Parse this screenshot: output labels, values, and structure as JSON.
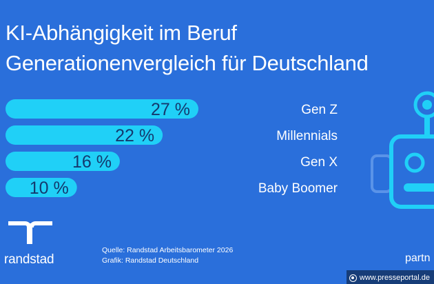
{
  "header": {
    "title_line1": "KI-Abhängigkeit im Beruf",
    "title_line2": "Generationenvergleich für Deutschland"
  },
  "chart_data": {
    "type": "bar",
    "orientation": "horizontal",
    "categories": [
      "Gen Z",
      "Millennials",
      "Gen X",
      "Baby Boomer"
    ],
    "values": [
      27,
      22,
      16,
      10
    ],
    "value_labels": [
      "27 %",
      "22 %",
      "16 %",
      "10 %"
    ],
    "unit": "%",
    "xlim": [
      0,
      30
    ],
    "grid": false,
    "legend": "none",
    "title": "",
    "xlabel": "",
    "ylabel": ""
  },
  "footer": {
    "brand": "randstad",
    "source_line": "Quelle: Randstad Arbeitsbarometer 2026",
    "graphic_line": "Grafik: Randstad Deutschland",
    "partner_text": "partn",
    "watermark": "www.presseportal.de"
  },
  "colors": {
    "background": "#2a6fdb",
    "bar": "#20d0f7",
    "bar_text": "#14396e",
    "robot": "#20d0f7"
  },
  "icons": {
    "robot": "robot-icon",
    "logo": "randstad-logo-icon",
    "watermark": "presseportal-icon"
  }
}
